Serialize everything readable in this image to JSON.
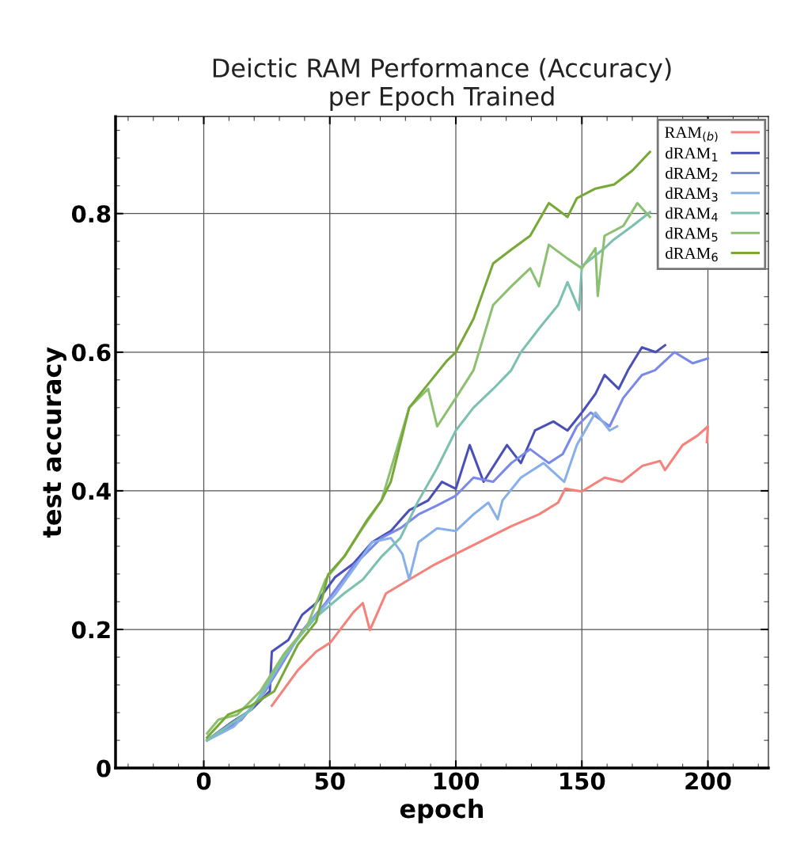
{
  "chart_data": {
    "type": "line",
    "title": "Deictic RAM Performance (Accuracy)\nper Epoch Trained",
    "xlabel": "epoch",
    "ylabel": "test accuracy",
    "xlim": [
      -35,
      224
    ],
    "xticks": [
      0,
      50,
      100,
      150,
      200
    ],
    "ylim": [
      0,
      0.94
    ],
    "yticks": [
      0,
      0.2,
      0.4,
      0.6,
      0.8
    ],
    "grid": true,
    "legend": "top right",
    "marker": "none",
    "line_style": "solid",
    "series": [
      {
        "name": "RAM$_{(b)}$",
        "color": "#f4817a",
        "x": [
          27,
          37.3,
          44.6,
          50.2,
          59.4,
          63.1,
          65.9,
          72.3,
          81.5,
          90.8,
          100,
          111,
          122,
          133,
          140.6,
          143.4,
          150,
          159,
          166,
          174,
          181,
          183,
          190,
          196,
          200,
          199.6
        ],
        "values": [
          0.09,
          0.141,
          0.168,
          0.181,
          0.225,
          0.238,
          0.199,
          0.252,
          0.272,
          0.292,
          0.309,
          0.329,
          0.349,
          0.366,
          0.383,
          0.403,
          0.399,
          0.419,
          0.413,
          0.436,
          0.443,
          0.43,
          0.466,
          0.48,
          0.493,
          0.47
        ]
      },
      {
        "name": "dRAM$_{1}$",
        "color": "#4a50b8",
        "x": [
          1.3,
          11.4,
          18.8,
          26.2,
          27,
          33.6,
          39,
          44.6,
          52,
          59.4,
          66.8,
          74.2,
          81.5,
          89,
          94.5,
          100,
          105.5,
          111,
          120.3,
          125.8,
          131.4,
          138.7,
          144.3,
          150,
          155.4,
          159,
          164.6,
          168.3,
          173.8,
          179.3,
          183
        ],
        "values": [
          0.04,
          0.067,
          0.084,
          0.111,
          0.168,
          0.185,
          0.221,
          0.238,
          0.275,
          0.295,
          0.326,
          0.342,
          0.372,
          0.386,
          0.413,
          0.403,
          0.466,
          0.413,
          0.466,
          0.44,
          0.487,
          0.5,
          0.487,
          0.513,
          0.54,
          0.567,
          0.547,
          0.574,
          0.607,
          0.6,
          0.61
        ]
      },
      {
        "name": "dRAM$_{2}$",
        "color": "#7a88e8",
        "x": [
          1.3,
          15,
          24.4,
          30,
          39,
          48.3,
          59.4,
          70.5,
          78,
          85.2,
          92.6,
          100,
          107,
          114.8,
          122,
          129.5,
          136.9,
          142.4,
          148,
          153.5,
          161,
          166.4,
          173.8,
          179,
          186.7,
          194,
          200
        ],
        "values": [
          0.04,
          0.07,
          0.111,
          0.144,
          0.198,
          0.238,
          0.292,
          0.332,
          0.346,
          0.366,
          0.379,
          0.393,
          0.419,
          0.413,
          0.44,
          0.46,
          0.44,
          0.453,
          0.493,
          0.513,
          0.493,
          0.534,
          0.567,
          0.574,
          0.6,
          0.584,
          0.591
        ]
      },
      {
        "name": "dRAM$_{3}$",
        "color": "#88b0e8",
        "x": [
          1.3,
          12,
          22,
          32,
          42,
          52,
          60,
          66.8,
          74.2,
          78.8,
          81.5,
          85.2,
          92.6,
          100,
          107,
          112.9,
          116.6,
          118.5,
          125.8,
          134.8,
          143,
          148,
          155.4,
          161,
          164
        ],
        "values": [
          0.04,
          0.06,
          0.1,
          0.16,
          0.21,
          0.25,
          0.29,
          0.326,
          0.332,
          0.309,
          0.272,
          0.326,
          0.346,
          0.342,
          0.366,
          0.383,
          0.359,
          0.386,
          0.419,
          0.44,
          0.413,
          0.466,
          0.513,
          0.487,
          0.493
        ]
      },
      {
        "name": "dRAM$_{4}$",
        "color": "#7cc0b0",
        "x": [
          1.3,
          18.8,
          33.6,
          44.6,
          55.7,
          63.1,
          70.5,
          78,
          85.2,
          92.6,
          100,
          107,
          114.8,
          122,
          125.8,
          133,
          140.6,
          144.3,
          148.9,
          150,
          159,
          162.5,
          170,
          177
        ],
        "values": [
          0.04,
          0.084,
          0.171,
          0.218,
          0.252,
          0.272,
          0.305,
          0.332,
          0.386,
          0.433,
          0.487,
          0.52,
          0.547,
          0.574,
          0.6,
          0.634,
          0.668,
          0.701,
          0.661,
          0.724,
          0.75,
          0.762,
          0.782,
          0.802
        ]
      },
      {
        "name": "dRAM$_{5}$",
        "color": "#8cc070",
        "x": [
          1.3,
          5.9,
          13.3,
          22.5,
          31.7,
          41,
          48.3,
          55.7,
          63,
          70.5,
          76,
          81.5,
          89,
          92.6,
          100,
          107,
          114.8,
          122,
          129.5,
          133,
          136.9,
          144.3,
          150,
          155.4,
          156.3,
          159,
          166.4,
          172,
          177
        ],
        "values": [
          0.05,
          0.07,
          0.077,
          0.111,
          0.164,
          0.205,
          0.272,
          0.305,
          0.346,
          0.386,
          0.453,
          0.52,
          0.547,
          0.493,
          0.534,
          0.574,
          0.668,
          0.695,
          0.721,
          0.695,
          0.755,
          0.735,
          0.721,
          0.75,
          0.681,
          0.768,
          0.782,
          0.815,
          0.795
        ]
      },
      {
        "name": "dRAM$_{6}$",
        "color": "#78a838",
        "x": [
          1.3,
          9.6,
          18.8,
          28,
          37.3,
          44.6,
          49.3,
          55.7,
          65,
          70.5,
          74.2,
          81.5,
          89,
          96.3,
          100,
          107,
          114.8,
          122,
          129.5,
          136.9,
          144.3,
          148,
          155.4,
          162.8,
          170,
          177
        ],
        "values": [
          0.044,
          0.077,
          0.09,
          0.111,
          0.178,
          0.211,
          0.279,
          0.305,
          0.359,
          0.386,
          0.413,
          0.52,
          0.554,
          0.587,
          0.6,
          0.648,
          0.728,
          0.748,
          0.768,
          0.815,
          0.795,
          0.822,
          0.836,
          0.842,
          0.862,
          0.889
        ]
      }
    ]
  }
}
